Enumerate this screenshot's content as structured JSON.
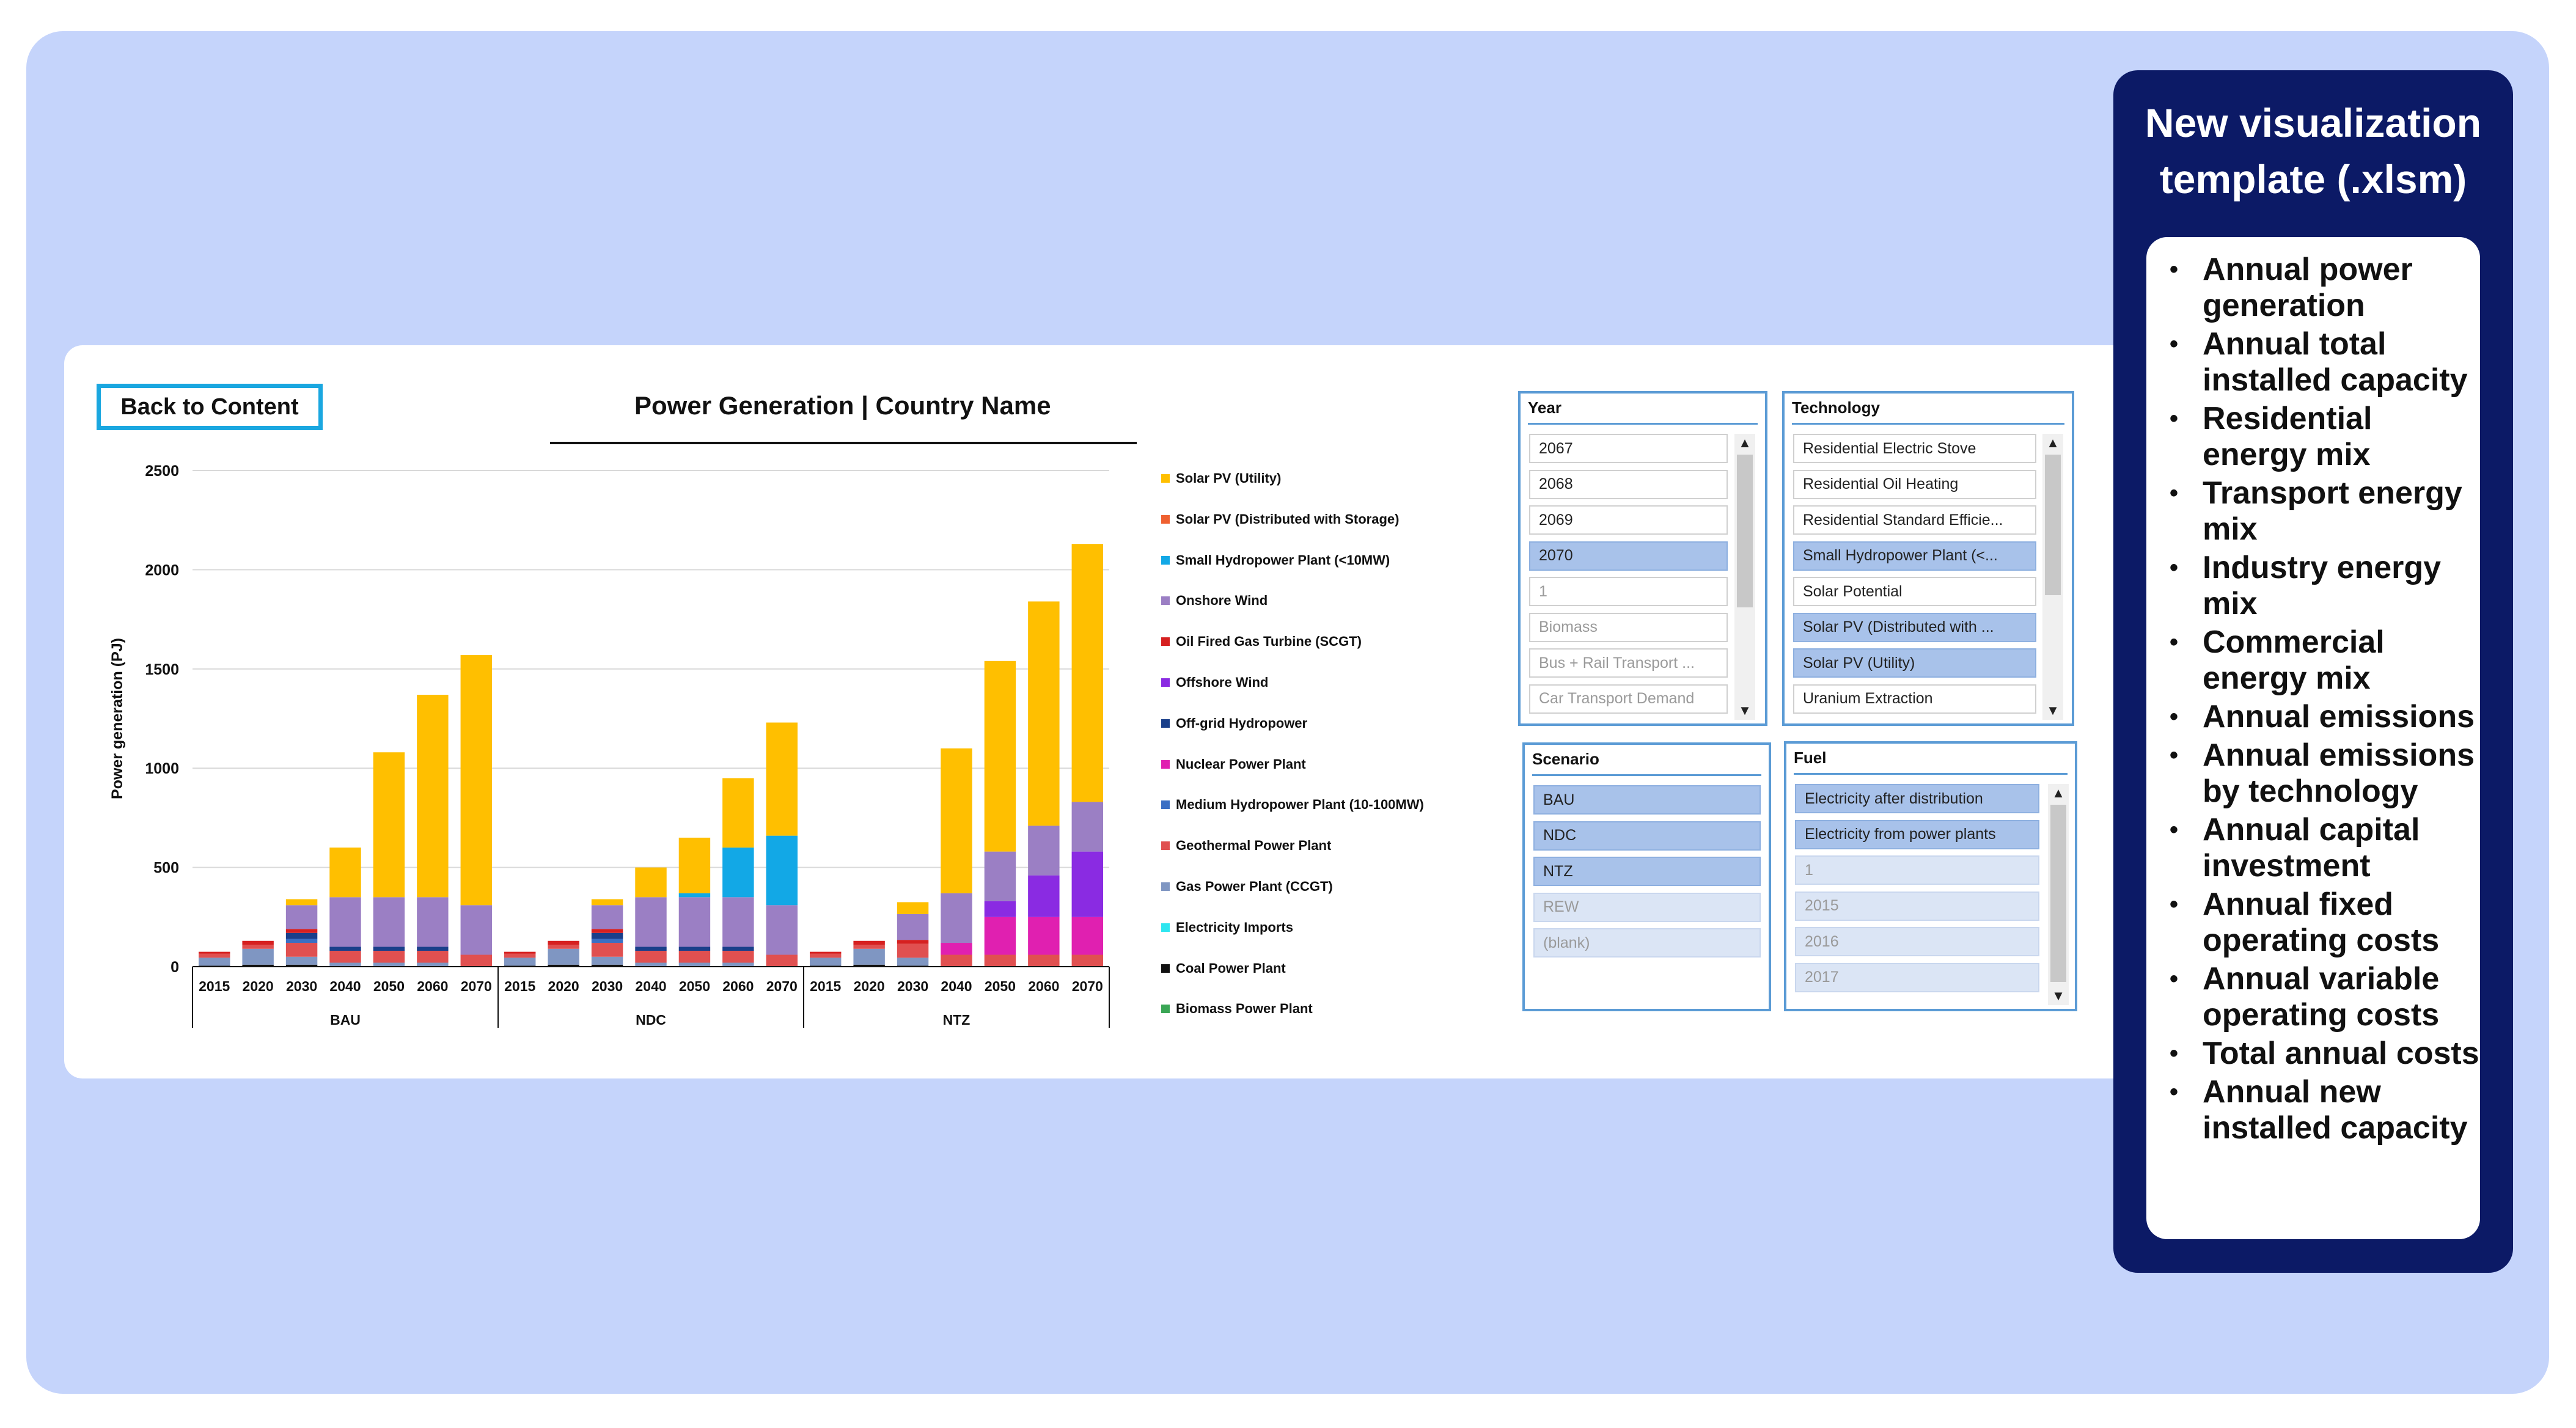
{
  "back_button": {
    "label": "Back to Content"
  },
  "chart_title": "Power Generation | Country Name",
  "chart_data": {
    "type": "bar",
    "stacked": true,
    "title": "Power Generation | Country Name",
    "xlabel": "",
    "ylabel": "Power generation (PJ)",
    "ylim": [
      0,
      2500
    ],
    "yticks": [
      0,
      500,
      1000,
      1500,
      2000,
      2500
    ],
    "grid": true,
    "legend_position": "right",
    "groups": [
      {
        "name": "BAU",
        "categories": [
          "2015",
          "2020",
          "2030",
          "2040",
          "2050",
          "2060",
          "2070"
        ]
      },
      {
        "name": "NDC",
        "categories": [
          "2015",
          "2020",
          "2030",
          "2040",
          "2050",
          "2060",
          "2070"
        ]
      },
      {
        "name": "NTZ",
        "categories": [
          "2015",
          "2020",
          "2030",
          "2040",
          "2050",
          "2060",
          "2070"
        ]
      }
    ],
    "series": [
      {
        "name": "Biomass Power Plant",
        "color": "#3aa655",
        "values": [
          0,
          0,
          0,
          0,
          0,
          0,
          0,
          0,
          0,
          0,
          0,
          0,
          0,
          0,
          0,
          0,
          0,
          0,
          0,
          0,
          0
        ]
      },
      {
        "name": "Coal Power Plant",
        "color": "#111111",
        "values": [
          5,
          10,
          10,
          0,
          0,
          0,
          0,
          5,
          10,
          10,
          0,
          0,
          0,
          0,
          5,
          10,
          5,
          0,
          0,
          0,
          0
        ]
      },
      {
        "name": "Electricity Imports",
        "color": "#2ee6f0",
        "values": [
          0,
          0,
          0,
          0,
          0,
          0,
          0,
          0,
          0,
          0,
          0,
          0,
          0,
          0,
          0,
          0,
          0,
          0,
          0,
          0,
          0
        ]
      },
      {
        "name": "Gas Power Plant (CCGT)",
        "color": "#7f96c2",
        "values": [
          40,
          80,
          40,
          20,
          20,
          20,
          0,
          40,
          80,
          40,
          20,
          20,
          20,
          0,
          40,
          80,
          40,
          0,
          0,
          0,
          0
        ]
      },
      {
        "name": "Geothermal Power Plant",
        "color": "#e05050",
        "values": [
          20,
          20,
          70,
          60,
          60,
          60,
          60,
          20,
          20,
          70,
          60,
          60,
          60,
          60,
          20,
          20,
          70,
          60,
          60,
          60,
          60
        ]
      },
      {
        "name": "Medium Hydropower Plant (10-100MW)",
        "color": "#3a6fc4",
        "values": [
          0,
          0,
          20,
          0,
          0,
          0,
          0,
          0,
          0,
          20,
          0,
          0,
          0,
          0,
          0,
          0,
          0,
          0,
          0,
          0,
          0
        ]
      },
      {
        "name": "Nuclear Power Plant",
        "color": "#e020b0",
        "values": [
          0,
          0,
          0,
          0,
          0,
          0,
          0,
          0,
          0,
          0,
          0,
          0,
          0,
          0,
          0,
          0,
          0,
          60,
          190,
          190,
          190
        ]
      },
      {
        "name": "Off-grid Hydropower",
        "color": "#1a3f8a",
        "values": [
          0,
          0,
          30,
          20,
          20,
          20,
          0,
          0,
          0,
          30,
          20,
          20,
          20,
          0,
          0,
          0,
          0,
          0,
          0,
          0,
          0
        ]
      },
      {
        "name": "Offshore Wind",
        "color": "#8a2be2",
        "values": [
          0,
          0,
          0,
          0,
          0,
          0,
          0,
          0,
          0,
          0,
          0,
          0,
          0,
          0,
          0,
          0,
          0,
          0,
          80,
          210,
          330
        ]
      },
      {
        "name": "Oil Fired Gas Turbine (SCGT)",
        "color": "#d62020",
        "values": [
          10,
          20,
          20,
          0,
          0,
          0,
          0,
          10,
          20,
          20,
          0,
          0,
          0,
          0,
          10,
          20,
          20,
          0,
          0,
          0,
          0
        ]
      },
      {
        "name": "Onshore Wind",
        "color": "#9b7fc4",
        "values": [
          0,
          0,
          120,
          250,
          250,
          250,
          250,
          0,
          0,
          120,
          250,
          250,
          250,
          250,
          0,
          0,
          130,
          250,
          250,
          250,
          250
        ]
      },
      {
        "name": "Small Hydropower Plant (<10MW)",
        "color": "#12a8e6",
        "values": [
          0,
          0,
          0,
          0,
          0,
          0,
          0,
          0,
          0,
          0,
          0,
          20,
          250,
          350,
          0,
          0,
          0,
          0,
          0,
          0,
          0
        ]
      },
      {
        "name": "Solar PV (Distributed with Storage)",
        "color": "#ef6030",
        "values": [
          0,
          0,
          0,
          0,
          0,
          0,
          0,
          0,
          0,
          0,
          0,
          0,
          0,
          0,
          0,
          0,
          0,
          0,
          0,
          0,
          0
        ]
      },
      {
        "name": "Solar PV (Utility)",
        "color": "#ffbf00",
        "values": [
          0,
          0,
          30,
          250,
          730,
          1020,
          1260,
          0,
          0,
          30,
          150,
          280,
          350,
          570,
          0,
          0,
          60,
          730,
          960,
          1130,
          1300
        ]
      }
    ],
    "legend_order": [
      "Solar PV (Utility)",
      "Solar PV (Distributed with Storage)",
      "Small Hydropower Plant (<10MW)",
      "Onshore Wind",
      "Oil Fired Gas Turbine (SCGT)",
      "Offshore Wind",
      "Off-grid Hydropower",
      "Nuclear Power Plant",
      "Medium Hydropower Plant (10-100MW)",
      "Geothermal Power Plant",
      "Gas Power Plant (CCGT)",
      "Electricity Imports",
      "Coal Power Plant",
      "Biomass Power Plant"
    ]
  },
  "slicers": {
    "year": {
      "title": "Year",
      "items": [
        {
          "label": "2067",
          "state": "normal"
        },
        {
          "label": "2068",
          "state": "normal"
        },
        {
          "label": "2069",
          "state": "normal"
        },
        {
          "label": "2070",
          "state": "selected"
        },
        {
          "label": "1",
          "state": "dim"
        },
        {
          "label": "Biomass",
          "state": "dim"
        },
        {
          "label": "Bus + Rail Transport ...",
          "state": "dim"
        },
        {
          "label": "Car Transport Demand",
          "state": "dim"
        }
      ]
    },
    "technology": {
      "title": "Technology",
      "items": [
        {
          "label": "Residential Electric Stove",
          "state": "normal"
        },
        {
          "label": "Residential Oil Heating",
          "state": "normal"
        },
        {
          "label": "Residential Standard Efficie...",
          "state": "normal"
        },
        {
          "label": "Small Hydropower Plant (<...",
          "state": "selected"
        },
        {
          "label": "Solar Potential",
          "state": "normal"
        },
        {
          "label": "Solar PV (Distributed with ...",
          "state": "selected"
        },
        {
          "label": "Solar PV (Utility)",
          "state": "selected"
        },
        {
          "label": "Uranium Extraction",
          "state": "normal"
        }
      ]
    },
    "scenario": {
      "title": "Scenario",
      "items": [
        {
          "label": "BAU",
          "state": "selected"
        },
        {
          "label": "NDC",
          "state": "selected"
        },
        {
          "label": "NTZ",
          "state": "selected"
        },
        {
          "label": "REW",
          "state": "seldim"
        },
        {
          "label": "(blank)",
          "state": "seldim"
        }
      ]
    },
    "fuel": {
      "title": "Fuel",
      "items": [
        {
          "label": "Electricity after distribution",
          "state": "selected"
        },
        {
          "label": "Electricity from power plants",
          "state": "selected"
        },
        {
          "label": "1",
          "state": "seldim"
        },
        {
          "label": "2015",
          "state": "seldim"
        },
        {
          "label": "2016",
          "state": "seldim"
        },
        {
          "label": "2017",
          "state": "seldim"
        }
      ]
    }
  },
  "info_panel": {
    "title": "New visualization template (.xlsm)",
    "items": [
      "Annual power generation",
      "Annual total installed capacity",
      "Residential energy mix",
      "Transport energy mix",
      "Industry energy mix",
      "Commercial energy mix",
      "Annual emissions",
      "Annual emissions by technology",
      "Annual capital investment",
      "Annual fixed operating costs",
      "Annual variable operating costs",
      "Total annual costs",
      "Annual new installed capacity"
    ]
  },
  "colors": {
    "background_panel": "#c5d4fb",
    "info_panel": "#0c1a66",
    "slicer_border": "#5b9bd5",
    "slicer_selected": "#a8c2ea",
    "back_button_border": "#1aa7e0"
  }
}
